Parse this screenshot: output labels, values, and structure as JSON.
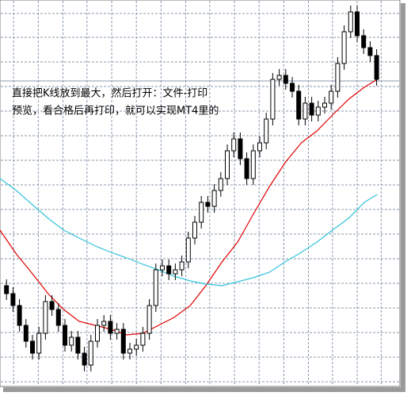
{
  "chart_data": {
    "type": "candlestick",
    "annotations": [
      "直接把K线放到最大，然后打开：文件-打印",
      "预览，看合格后再打印，就可以实现MT4里的"
    ],
    "open": [
      125,
      115,
      100,
      75,
      55,
      40,
      65,
      105,
      95,
      75,
      50,
      60,
      40,
      25,
      55,
      75,
      80,
      65,
      70,
      40,
      45,
      50,
      65,
      100,
      145,
      150,
      140,
      145,
      155,
      185,
      205,
      230,
      225,
      245,
      260,
      295,
      310,
      285,
      260,
      295,
      305,
      335,
      385,
      390,
      380,
      370,
      335,
      355,
      340,
      350,
      355,
      370,
      405,
      445,
      470,
      440,
      425,
      415
    ],
    "high": [
      133,
      123,
      108,
      83,
      63,
      73,
      113,
      113,
      103,
      83,
      68,
      68,
      48,
      63,
      83,
      88,
      88,
      78,
      78,
      53,
      58,
      73,
      108,
      153,
      158,
      158,
      153,
      163,
      193,
      213,
      238,
      238,
      253,
      268,
      303,
      318,
      318,
      293,
      303,
      313,
      343,
      393,
      398,
      398,
      388,
      378,
      363,
      363,
      358,
      363,
      378,
      413,
      453,
      478,
      478,
      448,
      433,
      423
    ],
    "low": [
      107,
      92,
      67,
      47,
      32,
      32,
      57,
      87,
      67,
      42,
      42,
      32,
      17,
      17,
      47,
      67,
      57,
      57,
      32,
      32,
      37,
      42,
      57,
      92,
      137,
      132,
      132,
      137,
      147,
      177,
      197,
      217,
      217,
      237,
      252,
      287,
      277,
      252,
      252,
      287,
      297,
      327,
      377,
      372,
      362,
      327,
      327,
      332,
      332,
      342,
      347,
      362,
      397,
      437,
      432,
      417,
      407,
      377
    ],
    "close": [
      115,
      100,
      75,
      55,
      40,
      65,
      105,
      95,
      75,
      50,
      60,
      40,
      25,
      55,
      75,
      80,
      65,
      70,
      40,
      45,
      50,
      65,
      100,
      145,
      150,
      140,
      145,
      155,
      185,
      205,
      230,
      225,
      245,
      260,
      295,
      310,
      285,
      260,
      295,
      305,
      335,
      385,
      390,
      380,
      370,
      335,
      355,
      340,
      350,
      355,
      370,
      405,
      445,
      470,
      440,
      425,
      415,
      385
    ],
    "up_color": "#ffffff",
    "down_color": "#000000",
    "series": [
      {
        "type": "line",
        "color": "#e00000",
        "x": [
          -1,
          1.5,
          4,
          6.4,
          8.8,
          11.2,
          13.7,
          16.1,
          18.5,
          21,
          23.4,
          25.8,
          28.3,
          30.7,
          33.2,
          35.6,
          38,
          40.5,
          42.9,
          45.4,
          47.8,
          50.2,
          52.7,
          55.1,
          57.1
        ],
        "values": [
          195,
          165,
          140,
          115,
          95,
          80,
          75,
          70,
          63,
          65,
          75,
          85,
          100,
          125,
          155,
          180,
          215,
          250,
          280,
          305,
          320,
          340,
          360,
          375,
          385
        ]
      },
      {
        "type": "line",
        "color": "#33c3dd",
        "x": [
          -1,
          1.5,
          4,
          6.4,
          8.8,
          11.2,
          13.7,
          16.1,
          18.5,
          21,
          23.4,
          25.8,
          28.3,
          30.7,
          33.2,
          35.6,
          38,
          40.5,
          42.9,
          45.4,
          47.8,
          50.2,
          52.7,
          55.1,
          57.1
        ],
        "values": [
          260,
          245,
          227,
          210,
          195,
          185,
          175,
          167,
          160,
          152,
          145,
          137,
          131,
          127,
          125,
          130,
          135,
          142,
          155,
          167,
          180,
          195,
          210,
          230,
          240
        ]
      }
    ],
    "price_line": 383,
    "xlim": [
      -1,
      59
    ],
    "ylim": [
      0,
      485
    ],
    "xticks": [
      1.1,
      4.9,
      8.7,
      12.4,
      16.2,
      20,
      23.8,
      27.6,
      31.3,
      35.1,
      38.9,
      42.7,
      46.5,
      50.2,
      54,
      57.7
    ],
    "yticks": [
      468,
      438,
      407,
      376,
      345,
      314,
      283,
      252,
      221,
      190,
      159,
      128,
      97,
      66,
      35,
      4
    ],
    "grid": true
  }
}
